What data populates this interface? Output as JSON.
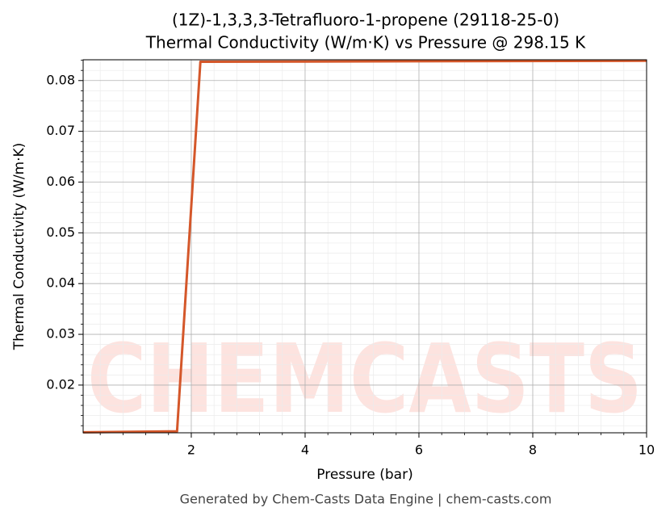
{
  "chart_data": {
    "type": "line",
    "title": [
      "(1Z)-1,3,3,3-Tetrafluoro-1-propene (29118-25-0)",
      "Thermal Conductivity (W/m·K) vs Pressure @ 298.15 K"
    ],
    "x_label": "Pressure (bar)",
    "y_label": "Thermal Conductivity (W/m·K)",
    "watermark": "CHEMCASTS",
    "footer": "Generated by Chem-Casts Data Engine | chem-casts.com",
    "x": [
      0.1,
      1.75,
      2.16,
      10
    ],
    "series": [
      {
        "name": "Thermal Conductivity",
        "color": "#d4572a",
        "values": [
          0.0107,
          0.0109,
          0.0837,
          0.0839
        ]
      }
    ],
    "xlim": [
      0.1,
      10
    ],
    "ylim": [
      0.0106,
      0.0841
    ],
    "xticks": [
      2,
      4,
      6,
      8,
      10
    ],
    "yticks": [
      0.02,
      0.03,
      0.04,
      0.05,
      0.06,
      0.07,
      0.08
    ],
    "xminorticks": [
      0.4,
      0.8,
      1.2,
      1.6,
      2.4,
      2.8,
      3.2,
      3.6,
      4.4,
      4.8,
      5.2,
      5.6,
      6.4,
      6.8,
      7.2,
      7.6,
      8.4,
      8.8,
      9.2,
      9.6
    ],
    "yminorticks": [
      0.012,
      0.014,
      0.016,
      0.018,
      0.022,
      0.024,
      0.026,
      0.028,
      0.032,
      0.034,
      0.036,
      0.038,
      0.042,
      0.044,
      0.046,
      0.048,
      0.052,
      0.054,
      0.056,
      0.058,
      0.062,
      0.064,
      0.066,
      0.068,
      0.072,
      0.074,
      0.076,
      0.078,
      0.082,
      0.084
    ],
    "grid": true,
    "minor_grid": true
  }
}
